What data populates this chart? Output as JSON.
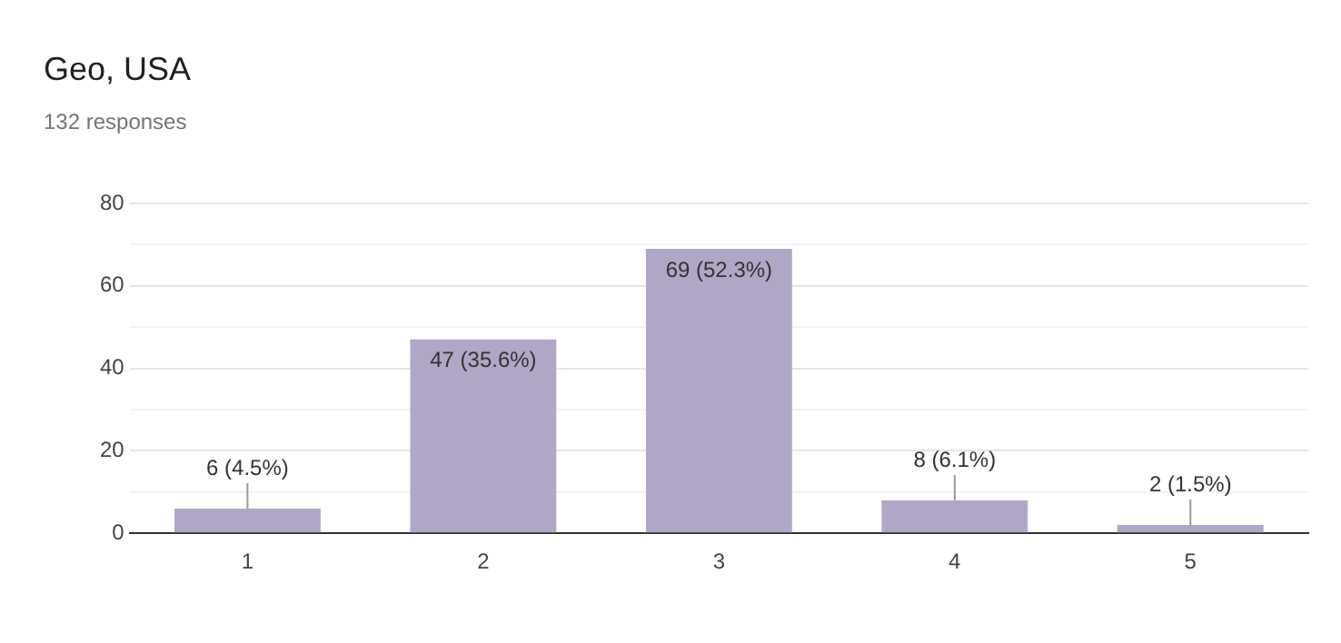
{
  "chart_data": {
    "type": "bar",
    "title": "Geo, USA",
    "subtitle": "132 responses",
    "categories": [
      "1",
      "2",
      "3",
      "4",
      "5"
    ],
    "values": [
      6,
      47,
      69,
      8,
      2
    ],
    "value_labels": [
      "6 (4.5%)",
      "47 (35.6%)",
      "69 (52.3%)",
      "8 (6.1%)",
      "2 (1.5%)"
    ],
    "color": "#b0a6c6",
    "ylim": [
      0,
      80
    ],
    "yticks": [
      0,
      {
        "value": 10,
        "label": null
      },
      20,
      {
        "value": 30,
        "label": null
      },
      40,
      {
        "value": 50,
        "label": null
      },
      60,
      {
        "value": 70,
        "label": null
      },
      80
    ],
    "grid": "y",
    "legend": false
  }
}
